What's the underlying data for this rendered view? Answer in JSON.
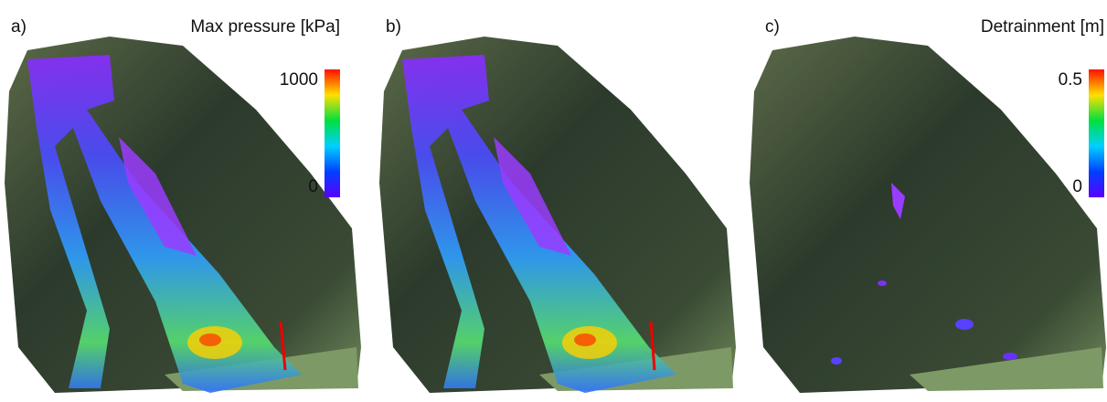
{
  "panels": [
    {
      "label": "a)",
      "colorbar": {
        "title": "Max pressure [kPa]",
        "max": 1000,
        "min": 0
      }
    },
    {
      "label": "b)"
    },
    {
      "label": "c)",
      "colorbar": {
        "title": "Detrainment [m]",
        "max": 0.5,
        "min": 0
      }
    }
  ]
}
